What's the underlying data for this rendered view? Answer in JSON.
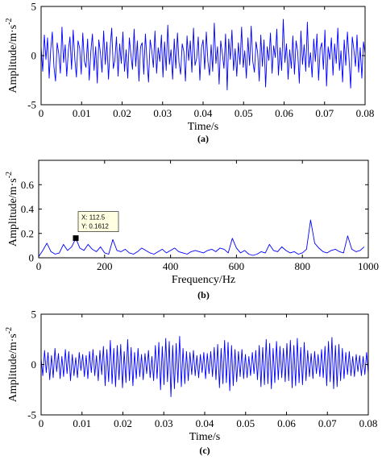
{
  "colors": {
    "signal": "#0000ff",
    "axes": "#000000",
    "datatip_bg": "#ffffe1"
  },
  "chart_data": [
    {
      "panel": "(a)",
      "type": "line",
      "xlabel": "Time/s",
      "ylabel": "Amplitude/m·s",
      "ylabel_sup": "-2",
      "xlim": [
        0,
        0.08
      ],
      "ylim": [
        -5,
        5
      ],
      "xticks": [
        "0",
        "0.01",
        "0.02",
        "0.03",
        "0.04",
        "0.05",
        "0.06",
        "0.07",
        "0.08"
      ],
      "yticks": [
        "-5",
        "0",
        "5"
      ],
      "series": [
        {
          "x_start": 0,
          "x_end": 0.08,
          "values": [
            0.9,
            -1.6,
            2.1,
            -0.4,
            1.8,
            -2.3,
            0.6,
            2.4,
            -1.1,
            -2.6,
            1.3,
            0.2,
            -1.8,
            2.9,
            -0.7,
            1.1,
            -2.1,
            0.5,
            1.9,
            -1.4,
            2.6,
            -0.3,
            -2.2,
            1.5,
            0.8,
            -1.9,
            2.3,
            -0.6,
            -1.2,
            1.7,
            -2.5,
            0.4,
            2.2,
            -1.5,
            0.9,
            -2.8,
            1.6,
            0.3,
            -1.7,
            2.5,
            -0.9,
            1.4,
            -2.4,
            0.7,
            2.8,
            -1.3,
            -0.5,
            1.9,
            -2.1,
            1.2,
            -0.8,
            2.4,
            -1.6,
            0.6,
            -2.3,
            1.8,
            0.1,
            -1.4,
            2.7,
            -1.1,
            1.5,
            -2.6,
            0.9,
            1.3,
            -1.9,
            2.2,
            -0.4,
            -2.7,
            1.6,
            0.5,
            -1.2,
            2.5,
            -1.8,
            0.8,
            -0.6,
            2.1,
            -2.2,
            1.4,
            -1.5,
            3.1,
            -0.9,
            0.6,
            -2.4,
            1.7,
            -1.3,
            2.3,
            -0.7,
            -1.9,
            1.2,
            0.4,
            -2.6,
            2.0,
            -0.5,
            1.5,
            -1.7,
            2.8,
            -1.0,
            -0.3,
            1.9,
            -2.5,
            0.8,
            1.6,
            -1.4,
            2.4,
            -0.6,
            -2.0,
            1.1,
            -1.6,
            3.3,
            -0.8,
            0.9,
            -2.9,
            1.5,
            0.2,
            -1.3,
            2.2,
            -3.5,
            1.7,
            -0.4,
            2.6,
            -1.5,
            0.7,
            -2.1,
            1.3,
            -0.9,
            2.9,
            -1.2,
            0.5,
            -2.3,
            1.8,
            -1.0,
            3.0,
            -0.6,
            -1.7,
            1.4,
            0.3,
            -2.6,
            2.1,
            -1.1,
            1.6,
            -3.2,
            0.9,
            -0.5,
            2.3,
            -1.8,
            1.0,
            -0.2,
            2.7,
            -2.0,
            0.8,
            -1.5,
            3.7,
            -0.7,
            1.2,
            -2.4,
            0.6,
            -1.3,
            2.0,
            -1.9,
            1.5,
            0.4,
            -2.8,
            2.5,
            -0.9,
            1.1,
            -1.6,
            3.4,
            -1.2,
            0.3,
            -2.2,
            1.7,
            -0.6,
            2.2,
            -2.5,
            0.7,
            1.3,
            -1.4,
            2.6,
            -3.1,
            0.9,
            -0.4,
            1.8,
            -2.0,
            1.2,
            -0.8,
            2.8,
            -1.5,
            0.5,
            -2.7,
            1.6,
            -1.0,
            2.4,
            -0.3,
            -3.3,
            1.9,
            0.6,
            -1.1,
            2.1,
            -1.7,
            0.8,
            -2.3,
            1.4,
            0.2
          ]
        }
      ]
    },
    {
      "panel": "(b)",
      "type": "line",
      "xlabel": "Frequency/Hz",
      "ylabel": "Amplitude/m·s",
      "ylabel_sup": "-2",
      "xlim": [
        0,
        1000
      ],
      "ylim": [
        0,
        0.8
      ],
      "xticks": [
        "0",
        "200",
        "400",
        "600",
        "800",
        "1000"
      ],
      "yticks": [
        "0",
        "0.2",
        "0.4",
        "0.6"
      ],
      "series": [
        {
          "x_step": 12.5,
          "values": [
            0.01,
            0.06,
            0.12,
            0.05,
            0.03,
            0.04,
            0.11,
            0.06,
            0.09,
            0.16,
            0.08,
            0.06,
            0.11,
            0.07,
            0.05,
            0.09,
            0.04,
            0.03,
            0.15,
            0.06,
            0.05,
            0.07,
            0.04,
            0.03,
            0.05,
            0.08,
            0.06,
            0.04,
            0.03,
            0.05,
            0.07,
            0.04,
            0.06,
            0.08,
            0.05,
            0.04,
            0.03,
            0.05,
            0.06,
            0.05,
            0.04,
            0.06,
            0.07,
            0.05,
            0.08,
            0.07,
            0.04,
            0.16,
            0.08,
            0.04,
            0.06,
            0.03,
            0.02,
            0.03,
            0.05,
            0.04,
            0.11,
            0.06,
            0.05,
            0.09,
            0.06,
            0.04,
            0.05,
            0.03,
            0.04,
            0.07,
            0.31,
            0.12,
            0.08,
            0.05,
            0.04,
            0.06,
            0.07,
            0.05,
            0.04,
            0.18,
            0.07,
            0.05,
            0.06,
            0.09
          ]
        }
      ],
      "datatip": {
        "x": 112.5,
        "y": 0.1612,
        "x_label": "X: 112.5",
        "y_label": "Y: 0.1612"
      }
    },
    {
      "panel": "(c)",
      "type": "line",
      "xlabel": "Time/s",
      "ylabel": "Amplitude/m·s",
      "ylabel_sup": "-2",
      "xlim": [
        0,
        0.08
      ],
      "ylim": [
        -5,
        5
      ],
      "xticks": [
        "0",
        "0.01",
        "0.02",
        "0.03",
        "0.04",
        "0.05",
        "0.06",
        "0.07",
        "0.08"
      ],
      "yticks": [
        "-5",
        "0",
        "5"
      ],
      "series": [
        {
          "x_start": 0,
          "x_end": 0.08,
          "values": [
            0.6,
            -1.1,
            1.4,
            -0.8,
            1.2,
            -1.5,
            0.9,
            -1.3,
            1.6,
            -0.7,
            1.1,
            -1.4,
            0.8,
            -1.2,
            1.5,
            -0.9,
            1.3,
            -1.6,
            1.0,
            -1.1,
            0.7,
            -1.3,
            1.2,
            -0.6,
            1.0,
            -1.2,
            0.9,
            -1.4,
            1.3,
            -0.8,
            1.5,
            -1.1,
            0.9,
            -1.6,
            1.4,
            -1.0,
            1.8,
            -2.1,
            1.5,
            -1.7,
            2.4,
            -1.9,
            1.6,
            -2.2,
            1.9,
            -1.5,
            2.0,
            -2.3,
            1.3,
            -1.8,
            2.5,
            -1.6,
            1.7,
            -2.1,
            1.2,
            -1.4,
            1.6,
            -1.2,
            1.0,
            -1.5,
            1.1,
            -0.9,
            1.4,
            -1.3,
            0.8,
            -1.6,
            1.9,
            -1.4,
            2.2,
            -2.5,
            1.8,
            -2.0,
            2.6,
            -1.7,
            2.3,
            -3.2,
            1.9,
            -2.4,
            2.1,
            -1.8,
            2.8,
            -2.2,
            1.6,
            -1.9,
            1.3,
            -1.6,
            1.2,
            -1.0,
            1.4,
            -1.1,
            0.9,
            -1.3,
            1.0,
            -0.8,
            1.2,
            -1.4,
            1.1,
            -0.9,
            1.3,
            -1.2,
            1.7,
            -1.5,
            2.0,
            -2.3,
            1.6,
            -1.9,
            2.4,
            -1.8,
            2.2,
            -2.6,
            1.9,
            -2.1,
            1.5,
            -1.7,
            1.3,
            -1.2,
            1.5,
            -1.4,
            1.0,
            -1.3,
            0.8,
            -1.1,
            1.2,
            -0.9,
            1.4,
            -1.5,
            1.9,
            -2.2,
            1.7,
            -2.0,
            2.5,
            -1.9,
            2.1,
            -2.4,
            1.6,
            -1.8,
            2.3,
            -1.5,
            1.8,
            -1.3,
            1.6,
            -1.7,
            2.1,
            -1.6,
            2.4,
            -2.3,
            1.9,
            -2.1,
            2.6,
            -1.8,
            1.7,
            -2.0,
            2.2,
            -1.6,
            1.4,
            -1.2,
            1.1,
            -1.4,
            1.3,
            -0.9,
            1.0,
            -1.2,
            1.5,
            -1.3,
            1.8,
            -2.1,
            2.3,
            -1.7,
            2.7,
            -2.4,
            1.9,
            -2.2,
            2.0,
            -1.6,
            1.6,
            -1.4,
            1.2,
            -1.0,
            1.3,
            -1.1,
            0.8,
            -1.2,
            1.0,
            -0.7,
            0.9,
            -1.1,
            0.8,
            -1.0,
            1.2,
            -0.9
          ]
        }
      ]
    }
  ]
}
